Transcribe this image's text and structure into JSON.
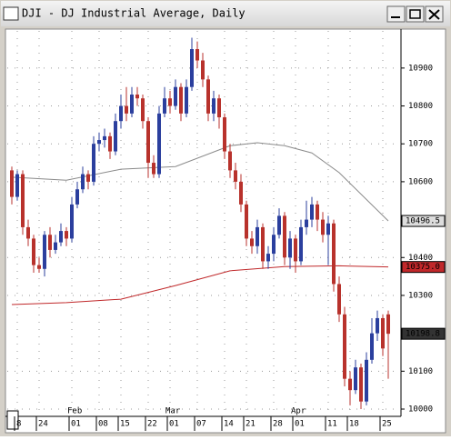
{
  "window": {
    "title": "DJI - DJ Industrial Average, Daily"
  },
  "chart_data": {
    "type": "candlestick",
    "open": [
      10630,
      10560,
      10620,
      10480,
      10450,
      10380,
      10370,
      10460,
      10420,
      10440,
      10470,
      10450,
      10540,
      10580,
      10620,
      10600,
      10700,
      10710,
      10720,
      10680,
      10760,
      10800,
      10780,
      10830,
      10820,
      10760,
      10650,
      10620,
      10780,
      10820,
      10800,
      10850,
      10780,
      10850,
      10950,
      10920,
      10870,
      10780,
      10820,
      10770,
      10680,
      10630,
      10600,
      10540,
      10450,
      10430,
      10480,
      10390,
      10410,
      10460,
      10510,
      10400,
      10450,
      10390,
      10480,
      10500,
      10540,
      10500,
      10460,
      10490,
      10330,
      10250,
      10080,
      10050,
      10110,
      10020,
      10130,
      10200,
      10240,
      10250
    ],
    "high": [
      10640,
      10630,
      10630,
      10500,
      10460,
      10400,
      10470,
      10480,
      10460,
      10490,
      10480,
      10560,
      10600,
      10640,
      10630,
      10720,
      10730,
      10740,
      10730,
      10780,
      10830,
      10850,
      10850,
      10850,
      10830,
      10770,
      10670,
      10800,
      10850,
      10840,
      10870,
      10860,
      10870,
      10980,
      10970,
      10940,
      10880,
      10840,
      10830,
      10780,
      10700,
      10650,
      10620,
      10550,
      10470,
      10500,
      10490,
      10430,
      10480,
      10530,
      10520,
      10470,
      10460,
      10500,
      10550,
      10560,
      10550,
      10520,
      10510,
      10500,
      10350,
      10270,
      10100,
      10130,
      10120,
      10150,
      10240,
      10260,
      10250,
      10260
    ],
    "low": [
      10540,
      10550,
      10460,
      10430,
      10360,
      10360,
      10350,
      10400,
      10410,
      10430,
      10430,
      10440,
      10530,
      10570,
      10580,
      10590,
      10680,
      10690,
      10660,
      10670,
      10740,
      10760,
      10770,
      10800,
      10740,
      10610,
      10610,
      10610,
      10770,
      10780,
      10790,
      10760,
      10770,
      10840,
      10900,
      10850,
      10760,
      10760,
      10740,
      10660,
      10610,
      10580,
      10520,
      10430,
      10410,
      10410,
      10370,
      10370,
      10390,
      10450,
      10380,
      10370,
      10360,
      10380,
      10460,
      10480,
      10470,
      10440,
      10380,
      10310,
      10230,
      10060,
      10010,
      10040,
      10000,
      10010,
      10120,
      10180,
      10140,
      10080
    ],
    "close": [
      10560,
      10620,
      10480,
      10450,
      10380,
      10370,
      10460,
      10420,
      10440,
      10470,
      10450,
      10540,
      10580,
      10620,
      10600,
      10700,
      10710,
      10720,
      10680,
      10760,
      10800,
      10780,
      10830,
      10820,
      10760,
      10650,
      10620,
      10780,
      10820,
      10800,
      10850,
      10780,
      10850,
      10950,
      10920,
      10870,
      10780,
      10820,
      10770,
      10680,
      10630,
      10600,
      10540,
      10450,
      10430,
      10480,
      10390,
      10410,
      10460,
      10510,
      10400,
      10450,
      10390,
      10480,
      10500,
      10540,
      10500,
      10460,
      10490,
      10330,
      10250,
      10080,
      10050,
      10110,
      10020,
      10130,
      10200,
      10240,
      10160,
      10198.8
    ],
    "up_color": "#2b3f9e",
    "down_color": "#b8322c",
    "close_label": "10198.8",
    "series": [
      {
        "x": [
          0,
          10,
          20,
          30,
          40,
          45,
          50,
          55,
          60,
          69
        ],
        "values": [
          10612,
          10604,
          10633,
          10640,
          10695,
          10703,
          10695,
          10676,
          10624,
          10496.5
        ],
        "color": "#8a8a8a",
        "last_label": "10496.5"
      },
      {
        "x": [
          0,
          10,
          20,
          30,
          40,
          50,
          60,
          69
        ],
        "values": [
          10276,
          10281,
          10290,
          10326,
          10365,
          10376,
          10378,
          10375
        ],
        "color": "#c0282a",
        "last_label": "10375.0"
      }
    ],
    "ylim": [
      9988,
      10998
    ],
    "yticks": [
      10000,
      10100,
      10300,
      10400,
      10600,
      10700,
      10800,
      10900
    ],
    "xticks": [
      {
        "value": 1,
        "label": "8"
      },
      {
        "value": 5,
        "label": "24"
      },
      {
        "value": 11,
        "label": "01"
      },
      {
        "value": 16,
        "label": "08"
      },
      {
        "value": 20,
        "label": "15"
      },
      {
        "value": 25,
        "label": "22"
      },
      {
        "value": 29,
        "label": "01"
      },
      {
        "value": 34,
        "label": "07"
      },
      {
        "value": 39,
        "label": "14"
      },
      {
        "value": 43,
        "label": "21"
      },
      {
        "value": 48,
        "label": "28"
      },
      {
        "value": 52,
        "label": "01"
      },
      {
        "value": 58,
        "label": "11"
      },
      {
        "value": 62,
        "label": "18"
      },
      {
        "value": 68,
        "label": "25"
      }
    ],
    "month_labels": [
      {
        "value": 11,
        "label": "Feb"
      },
      {
        "value": 29,
        "label": "Mar"
      },
      {
        "value": 52,
        "label": "Apr"
      }
    ],
    "grid": true
  }
}
